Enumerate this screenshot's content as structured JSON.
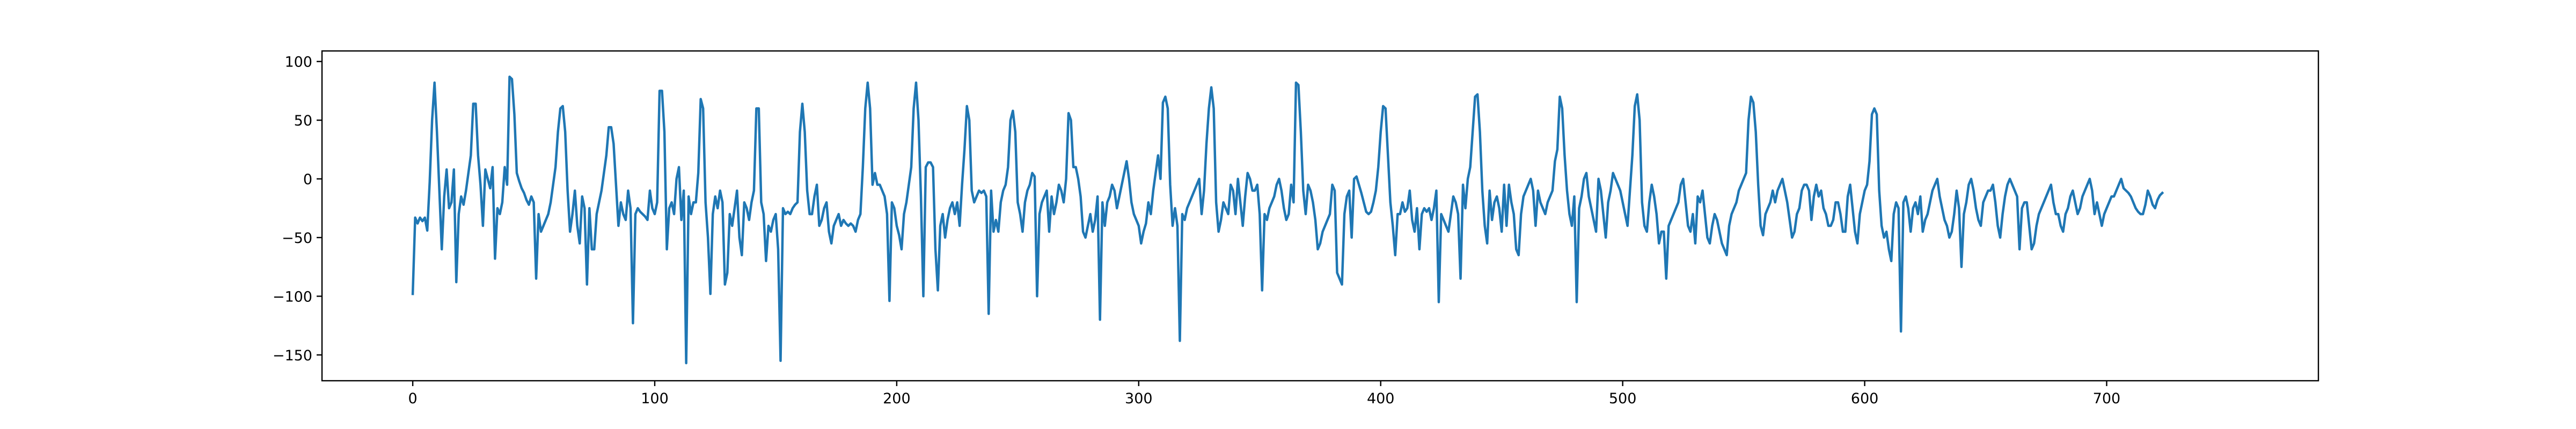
{
  "chart_data": {
    "type": "line",
    "title": "",
    "xlabel": "",
    "ylabel": "",
    "xlim": [
      -37.5,
      787.5
    ],
    "ylim": [
      -172,
      109
    ],
    "xticks": [
      0,
      100,
      200,
      300,
      400,
      500,
      600,
      700
    ],
    "xtick_labels": [
      "0",
      "100",
      "200",
      "300",
      "400",
      "500",
      "600",
      "700"
    ],
    "yticks": [
      -150,
      -100,
      -50,
      0,
      50,
      100
    ],
    "ytick_labels": [
      "−150",
      "−100",
      "−50",
      "0",
      "50",
      "100"
    ],
    "grid": false,
    "legend": "none",
    "series": [
      {
        "color": "#1f77b4",
        "y": [
          -98,
          -33,
          -38,
          -33,
          -36,
          -33,
          -44,
          -3,
          50,
          82,
          40,
          -10,
          -60,
          -15,
          8,
          -25,
          -20,
          8,
          -88,
          -30,
          -15,
          -22,
          -10,
          5,
          20,
          64,
          64,
          20,
          -5,
          -40,
          8,
          0,
          -8,
          10,
          -68,
          -25,
          -30,
          -20,
          10,
          -5,
          87,
          85,
          55,
          5,
          -2,
          -8,
          -12,
          -18,
          -22,
          -15,
          -20,
          -85,
          -30,
          -45,
          -40,
          -35,
          -30,
          -20,
          -5,
          10,
          40,
          60,
          62,
          40,
          -10,
          -45,
          -30,
          -10,
          -40,
          -55,
          -15,
          -25,
          -90,
          -25,
          -60,
          -60,
          -30,
          -20,
          -10,
          5,
          20,
          44,
          44,
          30,
          -5,
          -40,
          -20,
          -30,
          -35,
          -10,
          -25,
          -123,
          -30,
          -25,
          -28,
          -30,
          -32,
          -35,
          -10,
          -25,
          -30,
          -20,
          75,
          75,
          40,
          -60,
          -25,
          -20,
          -30,
          0,
          10,
          -35,
          -10,
          -157,
          -15,
          -30,
          -20,
          -20,
          5,
          68,
          60,
          -20,
          -50,
          -98,
          -30,
          -15,
          -25,
          -10,
          -20,
          -90,
          -80,
          -30,
          -40,
          -25,
          -10,
          -50,
          -65,
          -20,
          -25,
          -35,
          -20,
          -10,
          60,
          60,
          -20,
          -30,
          -70,
          -40,
          -45,
          -35,
          -30,
          -60,
          -155,
          -25,
          -30,
          -28,
          -30,
          -25,
          -22,
          -20,
          40,
          64,
          40,
          -10,
          -30,
          -30,
          -15,
          -5,
          -40,
          -35,
          -25,
          -20,
          -45,
          -55,
          -40,
          -35,
          -30,
          -40,
          -35,
          -38,
          -40,
          -38,
          -40,
          -45,
          -35,
          -30,
          10,
          60,
          82,
          60,
          -5,
          5,
          -5,
          -5,
          -10,
          -15,
          -30,
          -104,
          -20,
          -25,
          -40,
          -48,
          -60,
          -30,
          -20,
          -5,
          10,
          60,
          82,
          50,
          -15,
          -100,
          10,
          14,
          14,
          10,
          -60,
          -95,
          -40,
          -30,
          -50,
          -35,
          -25,
          -20,
          -30,
          -20,
          -40,
          -5,
          25,
          62,
          50,
          -10,
          -20,
          -15,
          -10,
          -12,
          -10,
          -15,
          -115,
          -10,
          -45,
          -35,
          -45,
          -20,
          -10,
          -5,
          10,
          50,
          58,
          40,
          -20,
          -30,
          -45,
          -20,
          -10,
          -5,
          5,
          2,
          -100,
          -30,
          -20,
          -15,
          -10,
          -45,
          -15,
          -30,
          -20,
          -5,
          -10,
          -20,
          0,
          56,
          50,
          10,
          10,
          0,
          -15,
          -45,
          -50,
          -40,
          -30,
          -45,
          -35,
          -15,
          -120,
          -20,
          -40,
          -20,
          -15,
          -5,
          -10,
          -25,
          -15,
          -5,
          5,
          15,
          0,
          -20,
          -30,
          -35,
          -40,
          -55,
          -45,
          -38,
          -20,
          -30,
          -10,
          5,
          20,
          0,
          65,
          70,
          60,
          -5,
          -40,
          -25,
          -40,
          -138,
          -30,
          -35,
          -25,
          -20,
          -15,
          -10,
          -5,
          0,
          -30,
          -10,
          30,
          60,
          78,
          60,
          -20,
          -45,
          -35,
          -20,
          -25,
          -30,
          -5,
          -10,
          -30,
          0,
          -20,
          -40,
          -15,
          5,
          0,
          -10,
          -10,
          -5,
          -30,
          -95,
          -30,
          -35,
          -25,
          -20,
          -15,
          -5,
          0,
          -10,
          -25,
          -35,
          -30,
          -5,
          -20,
          82,
          80,
          40,
          -10,
          -30,
          -5,
          -10,
          -20,
          -35,
          -60,
          -55,
          -45,
          -40,
          -35,
          -30,
          -5,
          -10,
          -80,
          -85,
          -90,
          -30,
          -15,
          -10,
          -50,
          0,
          2,
          -5,
          -12,
          -20,
          -28,
          -30,
          -28,
          -20,
          -10,
          10,
          40,
          62,
          60,
          20,
          -20,
          -40,
          -65,
          -30,
          -30,
          -20,
          -28,
          -25,
          -10,
          -35,
          -45,
          -25,
          -60,
          -30,
          -25,
          -28,
          -25,
          -35,
          -25,
          -10,
          -105,
          -30,
          -35,
          -40,
          -45,
          -30,
          -15,
          -20,
          -30,
          -85,
          -5,
          -25,
          0,
          10,
          40,
          70,
          72,
          40,
          -10,
          -40,
          -55,
          -10,
          -35,
          -20,
          -15,
          -25,
          -45,
          -5,
          -40,
          -5,
          -20,
          -30,
          -60,
          -65,
          -30,
          -15,
          -10,
          -5,
          0,
          -10,
          -40,
          -10,
          -20,
          -25,
          -30,
          -20,
          -15,
          -10,
          15,
          25,
          70,
          60,
          20,
          -10,
          -30,
          -40,
          -15,
          -105,
          -25,
          -15,
          0,
          5,
          -15,
          -25,
          -35,
          -45,
          0,
          -10,
          -30,
          -50,
          -20,
          -10,
          5,
          0,
          -5,
          -10,
          -20,
          -30,
          -40,
          -10,
          20,
          62,
          72,
          50,
          -20,
          -40,
          -45,
          -20,
          -5,
          -15,
          -30,
          -55,
          -45,
          -45,
          -85,
          -40,
          -35,
          -30,
          -25,
          -20,
          -5,
          0,
          -20,
          -40,
          -45,
          -30,
          -55,
          -15,
          -20,
          -10,
          -30,
          -50,
          -55,
          -40,
          -30,
          -35,
          -45,
          -55,
          -60,
          -65,
          -40,
          -30,
          -25,
          -20,
          -10,
          -5,
          0,
          5,
          50,
          70,
          65,
          40,
          -5,
          -40,
          -48,
          -30,
          -25,
          -20,
          -10,
          -20,
          -10,
          -5,
          0,
          -10,
          -20,
          -35,
          -50,
          -45,
          -30,
          -25,
          -10,
          -5,
          -5,
          -10,
          -35,
          -15,
          -5,
          -15,
          -10,
          -25,
          -30,
          -40,
          -40,
          -35,
          -20,
          -20,
          -30,
          -45,
          -45,
          -15,
          -5,
          -25,
          -45,
          -55,
          -30,
          -20,
          -10,
          -5,
          15,
          55,
          60,
          55,
          -10,
          -40,
          -50,
          -45,
          -60,
          -70,
          -30,
          -20,
          -25,
          -130,
          -20,
          -15,
          -25,
          -45,
          -25,
          -20,
          -30,
          -15,
          -45,
          -35,
          -30,
          -20,
          -10,
          -5,
          0,
          -15,
          -25,
          -35,
          -40,
          -50,
          -45,
          -30,
          -10,
          -25,
          -75,
          -30,
          -20,
          -5,
          0,
          -10,
          -25,
          -35,
          -40,
          -20,
          -15,
          -10,
          -10,
          -5,
          -20,
          -40,
          -50,
          -30,
          -15,
          -5,
          0,
          -5,
          -10,
          -15,
          -60,
          -25,
          -20,
          -20,
          -40,
          -60,
          -55,
          -40,
          -30,
          -25,
          -20,
          -15,
          -10,
          -5,
          -20,
          -30,
          -30,
          -40,
          -45,
          -30,
          -25,
          -15,
          -10,
          -20,
          -30,
          -25,
          -15,
          -10,
          -5,
          0,
          -10,
          -30,
          -20,
          -30,
          -40,
          -30,
          -25,
          -20,
          -15,
          -15,
          -10,
          -5,
          0,
          -8,
          -10,
          -12,
          -15,
          -20,
          -25,
          -28,
          -30,
          -30,
          -22,
          -10,
          -15,
          -22,
          -25,
          -18,
          -14,
          -12
        ]
      }
    ]
  }
}
